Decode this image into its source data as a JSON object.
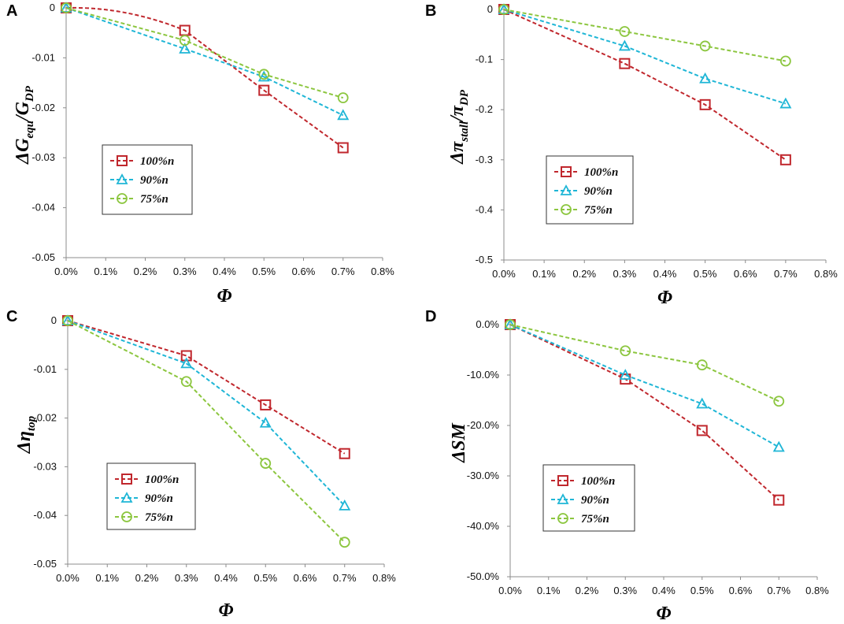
{
  "chart_data": [
    {
      "type": "line",
      "panel": "A",
      "ylabel": "ΔG_equ/G_DP",
      "ylabel_parts": {
        "delta": "Δ",
        "a": "G",
        "a_sub": "equ",
        "slash": "/",
        "b": "G",
        "b_sub": "DP"
      },
      "xlabel": "Φ",
      "x": [
        0.0,
        0.3,
        0.5,
        0.7
      ],
      "xlim": [
        0.0,
        0.8
      ],
      "xticks": [
        0,
        0.1,
        0.2,
        0.3,
        0.4,
        0.5,
        0.6,
        0.7,
        0.8
      ],
      "xtick_labels": [
        "0.0%",
        "0.1%",
        "0.2%",
        "0.3%",
        "0.4%",
        "0.5%",
        "0.6%",
        "0.7%",
        "0.8%"
      ],
      "ylim": [
        -0.05,
        0
      ],
      "yticks": [
        0,
        -0.01,
        -0.02,
        -0.03,
        -0.04,
        -0.05
      ],
      "ytick_labels": [
        "0",
        "-0.01",
        "-0.02",
        "-0.03",
        "-0.04",
        "-0.05"
      ],
      "series": [
        {
          "name": "100%n",
          "marker": "square",
          "color": "#c0272d",
          "values": [
            0,
            -0.0045,
            -0.0165,
            -0.028
          ]
        },
        {
          "name": "90%n",
          "marker": "triangle",
          "color": "#1fb6d6",
          "values": [
            0,
            -0.0082,
            -0.0138,
            -0.0215
          ]
        },
        {
          "name": "75%n",
          "marker": "circle",
          "color": "#8cc63f",
          "values": [
            0,
            -0.0065,
            -0.0133,
            -0.018
          ]
        }
      ],
      "legend": "left"
    },
    {
      "type": "line",
      "panel": "B",
      "ylabel": "Δπ_stall/π_DP",
      "ylabel_parts": {
        "delta": "Δ",
        "a": "π",
        "a_sub": "stall",
        "slash": "/",
        "b": "π",
        "b_sub": "DP"
      },
      "xlabel": "Φ",
      "x": [
        0.0,
        0.3,
        0.5,
        0.7
      ],
      "xlim": [
        0.0,
        0.8
      ],
      "xticks": [
        0,
        0.1,
        0.2,
        0.3,
        0.4,
        0.5,
        0.6,
        0.7,
        0.8
      ],
      "xtick_labels": [
        "0.0%",
        "0.1%",
        "0.2%",
        "0.3%",
        "0.4%",
        "0.5%",
        "0.6%",
        "0.7%",
        "0.8%"
      ],
      "ylim": [
        -0.5,
        0
      ],
      "yticks": [
        0,
        -0.1,
        -0.2,
        -0.3,
        -0.4,
        -0.5
      ],
      "ytick_labels": [
        "0",
        "-0.1",
        "-0.2",
        "-0.3",
        "-0.4",
        "-0.5"
      ],
      "series": [
        {
          "name": "100%n",
          "marker": "square",
          "color": "#c0272d",
          "values": [
            0,
            -0.108,
            -0.19,
            -0.3
          ]
        },
        {
          "name": "90%n",
          "marker": "triangle",
          "color": "#1fb6d6",
          "values": [
            0,
            -0.073,
            -0.138,
            -0.188
          ]
        },
        {
          "name": "75%n",
          "marker": "circle",
          "color": "#8cc63f",
          "values": [
            0,
            -0.044,
            -0.073,
            -0.103
          ]
        }
      ],
      "legend": "left"
    },
    {
      "type": "line",
      "panel": "C",
      "ylabel": "Δη_top",
      "ylabel_parts": {
        "delta": "Δ",
        "a": "η",
        "a_sub": "top",
        "slash": "",
        "b": "",
        "b_sub": ""
      },
      "xlabel": "Φ",
      "x": [
        0.0,
        0.3,
        0.5,
        0.7
      ],
      "xlim": [
        0.0,
        0.8
      ],
      "xticks": [
        0,
        0.1,
        0.2,
        0.3,
        0.4,
        0.5,
        0.6,
        0.7,
        0.8
      ],
      "xtick_labels": [
        "0.0%",
        "0.1%",
        "0.2%",
        "0.3%",
        "0.4%",
        "0.5%",
        "0.6%",
        "0.7%",
        "0.8%"
      ],
      "ylim": [
        -0.05,
        0
      ],
      "yticks": [
        0,
        -0.01,
        -0.02,
        -0.03,
        -0.04,
        -0.05
      ],
      "ytick_labels": [
        "0",
        "-0.01",
        "-0.02",
        "-0.03",
        "-0.04",
        "-0.05"
      ],
      "series": [
        {
          "name": "100%n",
          "marker": "square",
          "color": "#c0272d",
          "values": [
            0,
            -0.0072,
            -0.0173,
            -0.0273
          ]
        },
        {
          "name": "90%n",
          "marker": "triangle",
          "color": "#1fb6d6",
          "values": [
            0,
            -0.0088,
            -0.021,
            -0.038
          ]
        },
        {
          "name": "75%n",
          "marker": "circle",
          "color": "#8cc63f",
          "values": [
            0,
            -0.0125,
            -0.0293,
            -0.0455
          ]
        }
      ],
      "legend": "left"
    },
    {
      "type": "line",
      "panel": "D",
      "ylabel": "ΔSM",
      "ylabel_parts": {
        "delta": "Δ",
        "a": "SM",
        "a_sub": "",
        "slash": "",
        "b": "",
        "b_sub": ""
      },
      "xlabel": "Φ",
      "x": [
        0.0,
        0.3,
        0.5,
        0.7
      ],
      "xlim": [
        0.0,
        0.8
      ],
      "xticks": [
        0,
        0.1,
        0.2,
        0.3,
        0.4,
        0.5,
        0.6,
        0.7,
        0.8
      ],
      "xtick_labels": [
        "0.0%",
        "0.1%",
        "0.2%",
        "0.3%",
        "0.4%",
        "0.5%",
        "0.6%",
        "0.7%",
        "0.8%"
      ],
      "ylim": [
        -0.5,
        0
      ],
      "yticks": [
        0,
        -0.1,
        -0.2,
        -0.3,
        -0.4,
        -0.5
      ],
      "ytick_labels": [
        "0.0%",
        "-10.0%",
        "-20.0%",
        "-30.0%",
        "-40.0%",
        "-50.0%"
      ],
      "series": [
        {
          "name": "100%n",
          "marker": "square",
          "color": "#c0272d",
          "values": [
            0,
            -0.108,
            -0.21,
            -0.348
          ]
        },
        {
          "name": "90%n",
          "marker": "triangle",
          "color": "#1fb6d6",
          "values": [
            0,
            -0.1,
            -0.157,
            -0.243
          ]
        },
        {
          "name": "75%n",
          "marker": "circle",
          "color": "#8cc63f",
          "values": [
            0,
            -0.052,
            -0.08,
            -0.152
          ]
        }
      ],
      "legend": "left"
    }
  ]
}
